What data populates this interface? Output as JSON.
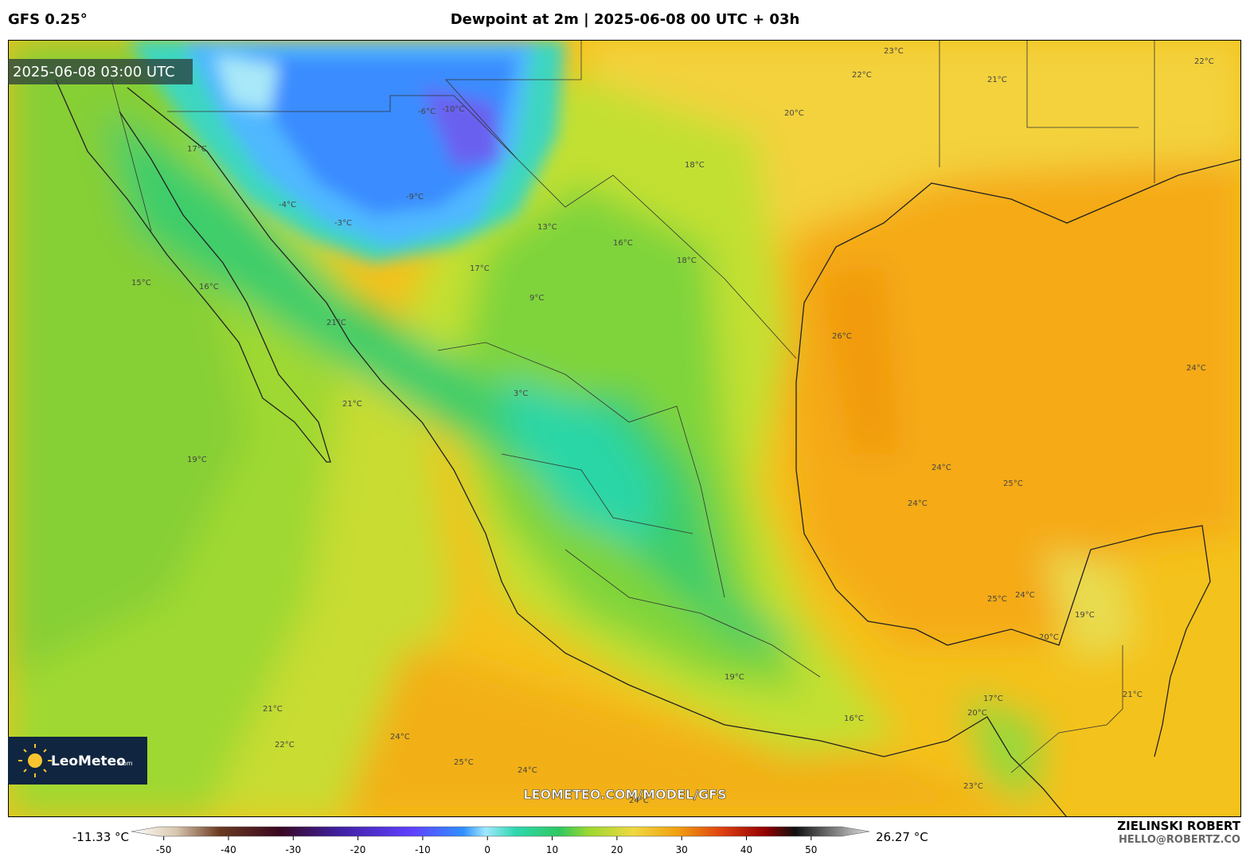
{
  "header": {
    "model": "GFS 0.25°",
    "title": "Dewpoint at 2m | 2025-06-08 00 UTC + 03h"
  },
  "map": {
    "valid_time": "2025-06-08 03:00 UTC",
    "watermark": "LEOMETEO.COM/MODEL/GFS",
    "logo": "LeoMeteo",
    "logo_suffix": ".com",
    "contour_labels": [
      "23°C",
      "22°C",
      "21°C",
      "22°C",
      "20°C",
      "18°C",
      "16°C",
      "18°C",
      "13°C",
      "17°C",
      "9°C",
      "3°C",
      "26°C",
      "24°C",
      "24°C",
      "24°C",
      "25°C",
      "24°C",
      "25°C",
      "19°C",
      "20°C",
      "21°C",
      "19°C",
      "16°C",
      "17°C",
      "20°C",
      "21°C",
      "22°C",
      "24°C",
      "25°C",
      "24°C",
      "24°C",
      "23°C",
      "21°C",
      "19°C",
      "17°C",
      "16°C",
      "15°C",
      "21°C",
      "-4°C",
      "-3°C",
      "-6°C",
      "-9°C",
      "-10°C"
    ]
  },
  "credits": {
    "author": "ZIELINSKI ROBERT",
    "email": "HELLO@ROBERTZ.CO"
  },
  "colorbar": {
    "min_label": "-11.33 °C",
    "max_label": "26.27 °C",
    "xlim": [
      -55,
      59
    ],
    "ticks": [
      -50,
      -40,
      -30,
      -20,
      -10,
      0,
      10,
      20,
      30,
      40,
      50
    ]
  }
}
